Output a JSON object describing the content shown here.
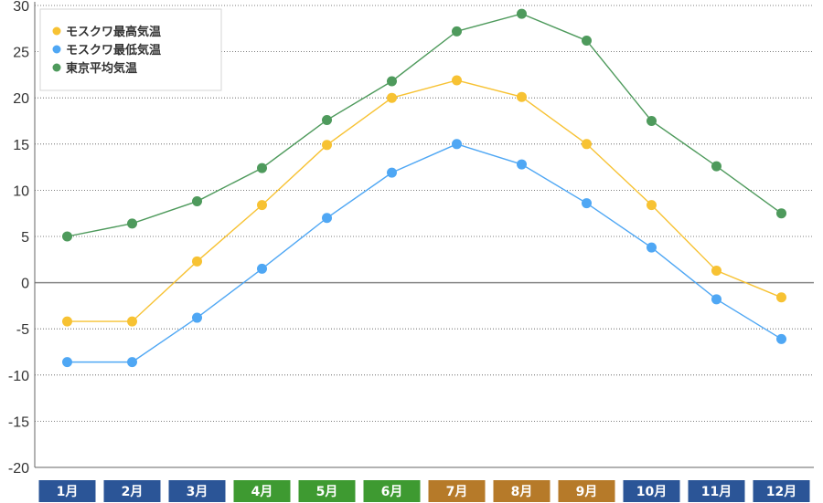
{
  "chart_data": {
    "type": "line",
    "categories": [
      "1月",
      "2月",
      "3月",
      "4月",
      "5月",
      "6月",
      "7月",
      "8月",
      "9月",
      "10月",
      "11月",
      "12月"
    ],
    "series": [
      {
        "name": "モスクワ最高気温",
        "color": "#f7c233",
        "values": [
          -4.2,
          -4.2,
          2.3,
          8.4,
          14.9,
          20.0,
          21.9,
          20.1,
          15.0,
          8.4,
          1.3,
          -1.6
        ]
      },
      {
        "name": "モスクワ最低気温",
        "color": "#4fa7f4",
        "values": [
          -8.6,
          -8.6,
          -3.8,
          1.5,
          7.0,
          11.9,
          15.0,
          12.8,
          8.6,
          3.8,
          -1.8,
          -6.1
        ]
      },
      {
        "name": "東京平均気温",
        "color": "#4e9a5c",
        "values": [
          5.0,
          6.4,
          8.8,
          12.4,
          17.6,
          21.8,
          27.2,
          29.1,
          26.2,
          17.5,
          12.6,
          7.5
        ]
      }
    ],
    "ylim": [
      -20,
      30
    ],
    "yticks": [
      30,
      25,
      20,
      15,
      10,
      5,
      0,
      -5,
      -10,
      -15,
      -20
    ],
    "grid": true,
    "legend_position": "top-left",
    "month_badge_colors": [
      "#2b5597",
      "#2b5597",
      "#2b5597",
      "#3e9a31",
      "#3e9a31",
      "#3e9a31",
      "#b67a29",
      "#b67a29",
      "#b67a29",
      "#2b5597",
      "#2b5597",
      "#2b5597"
    ]
  }
}
